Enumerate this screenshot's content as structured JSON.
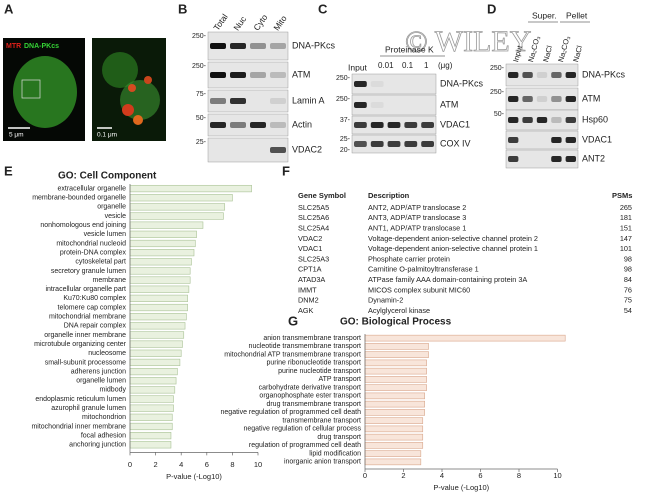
{
  "figure": {
    "letters": [
      "A",
      "B",
      "C",
      "D",
      "E",
      "F",
      "G"
    ],
    "watermark": "© WILEY",
    "panel_a": {
      "stain1": "MTR",
      "stain2": "DNA-PKcs",
      "scale1": "5 μm",
      "scale2": "0.1 μm"
    },
    "panel_b": {
      "lanes": [
        "Total",
        "Nuc",
        "Cyto",
        "Mito"
      ],
      "proteins": [
        "DNA-PKcs",
        "ATM",
        "Lamin A",
        "Actin",
        "VDAC2"
      ],
      "markers": [
        "250-",
        "250-",
        "75-",
        "50-",
        "25-"
      ]
    },
    "panel_c": {
      "input": "Input",
      "treatment": "Proteinase K",
      "doses": [
        "0.01",
        "0.1",
        "1"
      ],
      "unit": "(μg)",
      "proteins": [
        "DNA-PKcs",
        "ATM",
        "VDAC1",
        "COX IV"
      ],
      "markers": [
        "250-",
        "250-",
        "37-",
        "25-",
        "20-"
      ]
    },
    "panel_d": {
      "lanes": [
        "Input",
        "Na₂CO₃",
        "NaCl",
        "Na₂CO₃",
        "NaCl"
      ],
      "groups": [
        "Super.",
        "Pellet"
      ],
      "proteins": [
        "DNA-PKcs",
        "ATM",
        "Hsp60",
        "VDAC1",
        "ANT2"
      ],
      "markers": [
        "250-",
        "250-",
        "50-"
      ]
    }
  },
  "table": {
    "header": [
      "Gene Symbol",
      "Description",
      "PSMs"
    ],
    "rows": [
      [
        "SLC25A5",
        "ANT2, ADP/ATP translocase 2",
        "265"
      ],
      [
        "SLC25A6",
        "ANT3, ADP/ATP translocase 3",
        "181"
      ],
      [
        "SLC25A4",
        "ANT1, ADP/ATP translocase 1",
        "151"
      ],
      [
        "VDAC2",
        "Voltage-dependent anion-selective channel protein 2",
        "147"
      ],
      [
        "VDAC1",
        "Voltage-dependent anion-selective channel protein 1",
        "101"
      ],
      [
        "SLC25A3",
        "Phosphate carrier protein",
        "98"
      ],
      [
        "CPT1A",
        "Carnitine O-palmitoyltransferase 1",
        "98"
      ],
      [
        "ATAD3A",
        "ATPase family AAA domain-containing protein 3A",
        "84"
      ],
      [
        "IMMT",
        "MICOS complex subunit MIC60",
        "76"
      ],
      [
        "DNM2",
        "Dynamin-2",
        "75"
      ],
      [
        "AGK",
        "Acylglycerol kinase",
        "54"
      ]
    ]
  },
  "chart_data": [
    {
      "type": "bar",
      "orientation": "horizontal",
      "title": "GO: Cell Component",
      "xlabel": "P-value (-Log10)",
      "categories": [
        "extracellular organelle",
        "membrane-bounded organelle",
        "organelle",
        "vesicle",
        "nonhomologous end joining",
        "vesicle lumen",
        "mitochondrial nucleoid",
        "protein-DNA complex",
        "cytoskeletal part",
        "secretory granule lumen",
        "membrane",
        "intracellular organelle part",
        "Ku70:Ku80 complex",
        "telomere cap complex",
        "mitochondrial membrane",
        "DNA repair complex",
        "organelle inner membrane",
        "microtubule organizing center",
        "nucleosome",
        "small-subunit processome",
        "adherens junction",
        "organelle lumen",
        "midbody",
        "endoplasmic reticulum lumen",
        "azurophil granule lumen",
        "mitochondrion",
        "mitochondrial inner membrane",
        "focal adhesion",
        "anchoring junction"
      ],
      "values": [
        9.5,
        8.0,
        7.4,
        7.3,
        5.7,
        5.2,
        5.1,
        5.0,
        4.8,
        4.7,
        4.7,
        4.6,
        4.5,
        4.5,
        4.4,
        4.3,
        4.2,
        4.1,
        4.0,
        3.9,
        3.7,
        3.6,
        3.5,
        3.4,
        3.4,
        3.3,
        3.3,
        3.2,
        3.2
      ],
      "color": "#e9f1df",
      "edge_color": "#a9c295",
      "xlim": [
        0,
        10
      ],
      "xticks": [
        0,
        2,
        4,
        6,
        8,
        10
      ]
    },
    {
      "type": "bar",
      "orientation": "horizontal",
      "title": "GO: Biological Process",
      "xlabel": "P-value (-Log10)",
      "categories": [
        "anion transmembrane transport",
        "nucleotide transmembrane transport",
        "mitochondrial ATP transmembrane transport",
        "purine ribonucleotide transport",
        "purine nucleotide transport",
        "ATP transport",
        "carbohydrate derivative transport",
        "organophosphate ester transport",
        "drug transmembrane transport",
        "negative regulation of programmed cell death",
        "transmembrane transport",
        "negative regulation of cellular process",
        "drug transport",
        "regulation of programmed cell death",
        "lipid modification",
        "inorganic anion transport"
      ],
      "values": [
        10.4,
        3.3,
        3.3,
        3.2,
        3.2,
        3.2,
        3.2,
        3.1,
        3.1,
        3.1,
        3.0,
        3.0,
        3.0,
        3.0,
        2.9,
        2.9
      ],
      "color": "#f8e5da",
      "edge_color": "#d8a68b",
      "xlim": [
        0,
        12
      ],
      "xticks": [
        0,
        2,
        4,
        6,
        8,
        10
      ]
    }
  ]
}
